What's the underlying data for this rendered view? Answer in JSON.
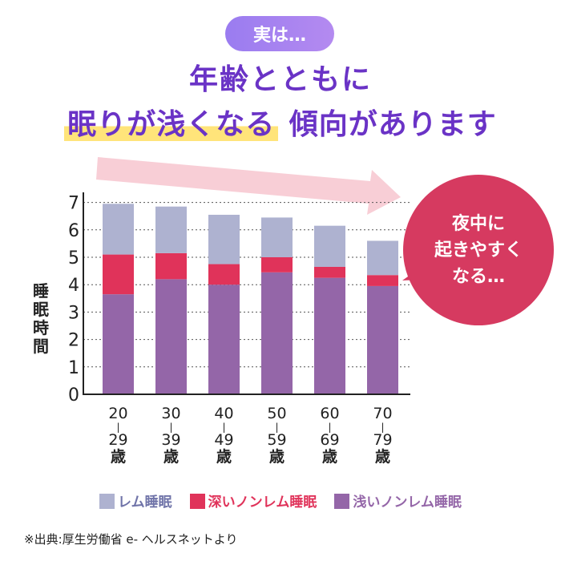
{
  "header": {
    "pill": "実は…",
    "title_line1": "年齢とともに",
    "title_line2_highlight": "眠りが浅くなる",
    "title_line2_rest": "傾向があります"
  },
  "bubble": {
    "lines": [
      "夜中に",
      "起きやすく",
      "なる…"
    ]
  },
  "source": "※出典:厚生労働省 e- ヘルスネットより",
  "colors": {
    "rem": "#aeb2d0",
    "deep": "#e0335a",
    "light": "#9466a8",
    "title": "#6a33c6",
    "bubble": "#d63a60"
  },
  "chart_data": {
    "type": "bar",
    "stacked": true,
    "title": "",
    "ylabel": "睡眠時間",
    "xlabel": "",
    "ylim": [
      0,
      7
    ],
    "yticks": [
      "0",
      "1",
      "2",
      "3",
      "4",
      "5",
      "6",
      "7"
    ],
    "grid": true,
    "categories": [
      {
        "from": "20",
        "to": "29",
        "unit": "歳"
      },
      {
        "from": "30",
        "to": "39",
        "unit": "歳"
      },
      {
        "from": "40",
        "to": "49",
        "unit": "歳"
      },
      {
        "from": "50",
        "to": "59",
        "unit": "歳"
      },
      {
        "from": "60",
        "to": "69",
        "unit": "歳"
      },
      {
        "from": "70",
        "to": "79",
        "unit": "歳"
      }
    ],
    "series": [
      {
        "name": "浅いノンレム睡眠",
        "key": "light",
        "values": [
          3.65,
          4.2,
          4.0,
          4.45,
          4.25,
          3.95
        ]
      },
      {
        "name": "深いノンレム睡眠",
        "key": "deep",
        "values": [
          1.45,
          0.95,
          0.75,
          0.55,
          0.4,
          0.4
        ]
      },
      {
        "name": "レム睡眠",
        "key": "rem",
        "values": [
          1.85,
          1.7,
          1.8,
          1.45,
          1.5,
          1.25
        ]
      }
    ],
    "legend": {
      "placement": "bottom",
      "order": [
        "レム睡眠",
        "深いノンレム睡眠",
        "浅いノンレム睡眠"
      ]
    }
  }
}
